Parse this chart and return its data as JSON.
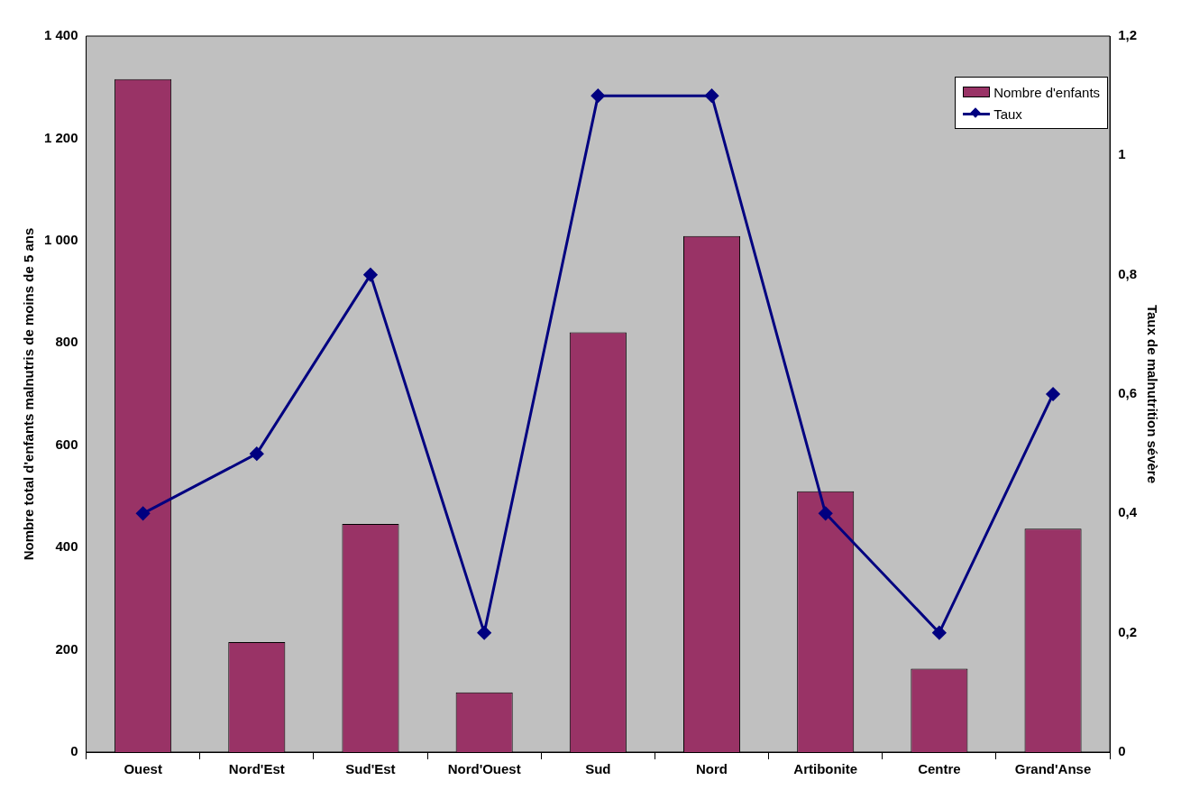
{
  "chart_data": {
    "type": "bar",
    "categories": [
      "Ouest",
      "Nord'Est",
      "Sud'Est",
      "Nord'Ouest",
      "Sud",
      "Nord",
      "Artibonite",
      "Centre",
      "Grand'Anse"
    ],
    "ylabel": "Nombre total d'enfants malnutris de moins de 5 ans",
    "y2label": "Taux de malnutrition sévère",
    "series": [
      {
        "name": "Nombre d'enfants",
        "color": "#993366",
        "values": [
          1316,
          215,
          446,
          117,
          821,
          1009,
          510,
          163,
          437
        ]
      },
      {
        "name": "Taux",
        "type": "line",
        "axis": "y2",
        "color": "#000080",
        "marker": "diamond",
        "values": [
          0.4,
          0.5,
          0.8,
          0.2,
          1.1,
          1.1,
          0.4,
          0.2,
          0.6
        ]
      }
    ],
    "ylim": [
      0,
      1400
    ],
    "yticks": [
      0,
      200,
      400,
      600,
      800,
      {
        "value": 1000,
        "label": "1 000"
      },
      {
        "value": 1200,
        "label": "1 200"
      },
      {
        "value": 1400,
        "label": "1 400"
      }
    ],
    "y2lim": [
      0,
      1.2
    ],
    "y2ticks": [
      0,
      {
        "value": 0.2,
        "label": "0,2"
      },
      {
        "value": 0.4,
        "label": "0,4"
      },
      {
        "value": 0.6,
        "label": "0,6"
      },
      {
        "value": 0.8,
        "label": "0,8"
      },
      1,
      {
        "value": 1.2,
        "label": "1,2"
      }
    ],
    "grid": false,
    "legend": "top right"
  }
}
